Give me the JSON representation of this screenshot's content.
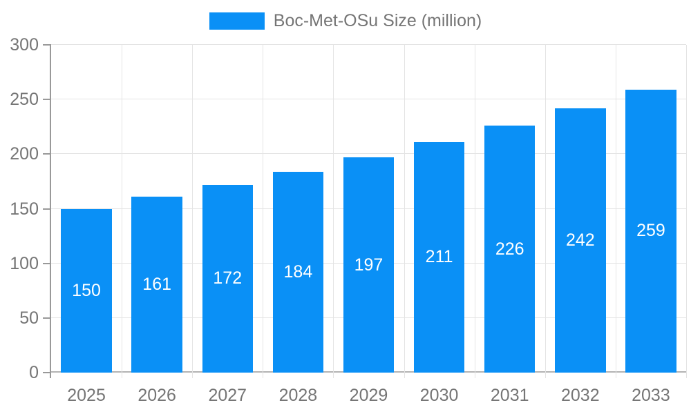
{
  "legend": {
    "label": "Boc-Met-OSu Size (million)"
  },
  "chart_data": {
    "type": "bar",
    "title": "",
    "categories": [
      "2025",
      "2026",
      "2027",
      "2028",
      "2029",
      "2030",
      "2031",
      "2032",
      "2033"
    ],
    "series": [
      {
        "name": "Boc-Met-OSu Size (million)",
        "values": [
          150,
          161,
          172,
          184,
          197,
          211,
          226,
          242,
          259
        ]
      }
    ],
    "xlabel": "",
    "ylabel": "",
    "ylim": [
      0,
      300
    ],
    "yticks": [
      0,
      50,
      100,
      150,
      200,
      250,
      300
    ],
    "grid": true,
    "legend_position": "top",
    "value_labels": "inside-center",
    "colors": {
      "bar": "#0A90F6",
      "axis_text": "#757575",
      "value_label": "#FFFFFF",
      "grid_line": "#E4E4E4",
      "y_axis_line": "#999999",
      "x_axis_line": "#B3B3B3"
    }
  }
}
